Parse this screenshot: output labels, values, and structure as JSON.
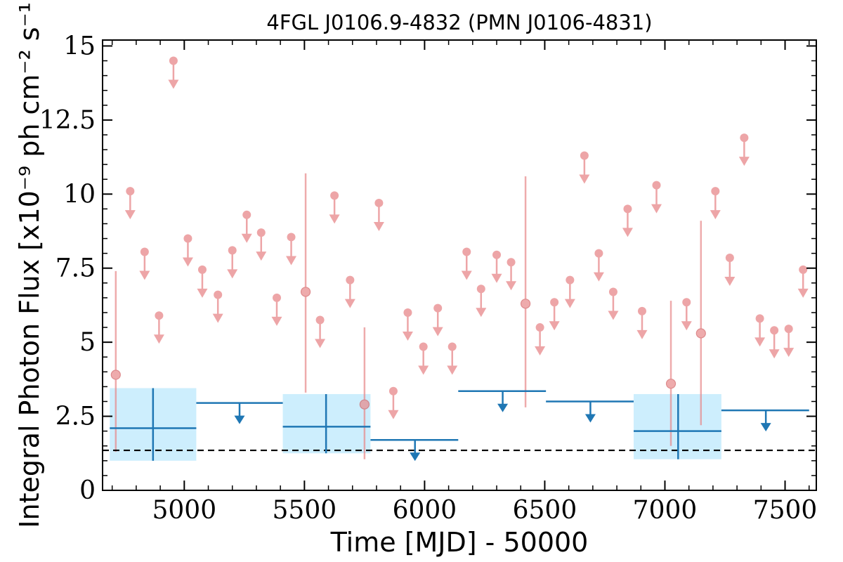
{
  "chart_data": {
    "type": "scatter",
    "title": "4FGL J0106.9-4832 (PMN J0106-4831)",
    "xlabel": "Time [MJD] - 50000",
    "ylabel": "Integral Photon Flux [x10⁻⁹ ph cm⁻² s⁻¹]",
    "xlim": [
      4660,
      7630
    ],
    "ylim": [
      0,
      15.2
    ],
    "xticks": [
      5000,
      5500,
      6000,
      6500,
      7000,
      7500
    ],
    "xtick_labels": [
      "5000",
      "5500",
      "6000",
      "6500",
      "7000",
      "7500"
    ],
    "yticks": [
      0,
      2.5,
      5,
      7.5,
      10,
      12.5,
      15
    ],
    "ytick_labels": [
      "0",
      "2.5",
      "5",
      "7.5",
      "10",
      "12.5",
      "15"
    ],
    "grid": false,
    "colors": {
      "monthly": "#e8888a",
      "yearly": "#1f77b4",
      "band": "#cdeefd",
      "baseline": "#000000"
    },
    "baseline": 1.35,
    "monthly_detections": [
      {
        "x": 4715,
        "y": 3.9,
        "ylo": 1.3,
        "yhi": 7.4
      },
      {
        "x": 5505,
        "y": 6.7,
        "ylo": 3.3,
        "yhi": 10.7
      },
      {
        "x": 5750,
        "y": 2.9,
        "ylo": 1.05,
        "yhi": 5.5
      },
      {
        "x": 6420,
        "y": 6.3,
        "ylo": 2.8,
        "yhi": 10.6
      },
      {
        "x": 7025,
        "y": 3.6,
        "ylo": 1.5,
        "yhi": 6.4
      },
      {
        "x": 7150,
        "y": 5.3,
        "ylo": 2.2,
        "yhi": 9.1
      }
    ],
    "monthly_upper_limits": [
      {
        "x": 4775,
        "y": 10.1
      },
      {
        "x": 4835,
        "y": 8.05
      },
      {
        "x": 4895,
        "y": 5.9
      },
      {
        "x": 4955,
        "y": 14.5
      },
      {
        "x": 5015,
        "y": 8.5
      },
      {
        "x": 5075,
        "y": 7.45
      },
      {
        "x": 5140,
        "y": 6.6
      },
      {
        "x": 5200,
        "y": 8.1
      },
      {
        "x": 5260,
        "y": 9.3
      },
      {
        "x": 5320,
        "y": 8.7
      },
      {
        "x": 5385,
        "y": 6.5
      },
      {
        "x": 5445,
        "y": 8.55
      },
      {
        "x": 5565,
        "y": 5.75
      },
      {
        "x": 5625,
        "y": 9.95
      },
      {
        "x": 5690,
        "y": 7.1
      },
      {
        "x": 5810,
        "y": 9.7
      },
      {
        "x": 5870,
        "y": 3.35
      },
      {
        "x": 5930,
        "y": 6.0
      },
      {
        "x": 5995,
        "y": 4.85
      },
      {
        "x": 6055,
        "y": 6.15
      },
      {
        "x": 6115,
        "y": 4.85
      },
      {
        "x": 6175,
        "y": 8.05
      },
      {
        "x": 6235,
        "y": 6.8
      },
      {
        "x": 6300,
        "y": 7.95
      },
      {
        "x": 6360,
        "y": 7.7
      },
      {
        "x": 6480,
        "y": 5.5
      },
      {
        "x": 6540,
        "y": 6.35
      },
      {
        "x": 6605,
        "y": 7.1
      },
      {
        "x": 6665,
        "y": 11.3
      },
      {
        "x": 6725,
        "y": 8.0
      },
      {
        "x": 6785,
        "y": 6.7
      },
      {
        "x": 6845,
        "y": 9.5
      },
      {
        "x": 6905,
        "y": 6.05
      },
      {
        "x": 6965,
        "y": 10.3
      },
      {
        "x": 7090,
        "y": 6.35
      },
      {
        "x": 7210,
        "y": 10.1
      },
      {
        "x": 7270,
        "y": 7.85
      },
      {
        "x": 7330,
        "y": 11.9
      },
      {
        "x": 7395,
        "y": 5.8
      },
      {
        "x": 7455,
        "y": 5.4
      },
      {
        "x": 7515,
        "y": 5.45
      },
      {
        "x": 7575,
        "y": 7.45
      }
    ],
    "yearly_detections": [
      {
        "x0": 4690,
        "x1": 5050,
        "xc": 4870,
        "y": 2.1,
        "ylo": 1.0,
        "yhi": 3.45
      },
      {
        "x0": 5410,
        "x1": 5775,
        "xc": 5590,
        "y": 2.15,
        "ylo": 1.25,
        "yhi": 3.25
      },
      {
        "x0": 6870,
        "x1": 7235,
        "xc": 7055,
        "y": 2.0,
        "ylo": 1.05,
        "yhi": 3.25
      }
    ],
    "yearly_upper_limits": [
      {
        "x0": 5050,
        "x1": 5410,
        "xc": 5230,
        "y": 2.95
      },
      {
        "x0": 5775,
        "x1": 6140,
        "xc": 5960,
        "y": 1.7
      },
      {
        "x0": 6140,
        "x1": 6505,
        "xc": 6325,
        "y": 3.35
      },
      {
        "x0": 6505,
        "x1": 6870,
        "xc": 6690,
        "y": 3.0
      },
      {
        "x0": 7235,
        "x1": 7600,
        "xc": 7420,
        "y": 2.7
      }
    ]
  }
}
